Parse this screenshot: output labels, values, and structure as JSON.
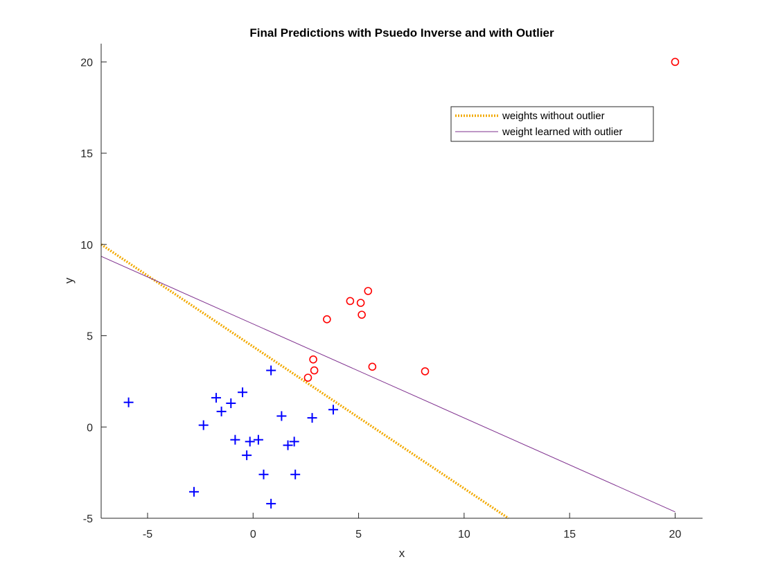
{
  "chart_data": {
    "type": "scatter",
    "title": "Final Predictions with Psuedo Inverse and with Outlier",
    "xlabel": "x",
    "ylabel": "y",
    "xlim": [
      -7.2,
      21.3
    ],
    "ylim": [
      -5,
      21
    ],
    "xticks": [
      -5,
      0,
      5,
      10,
      15,
      20
    ],
    "yticks": [
      -5,
      0,
      5,
      10,
      15,
      20
    ],
    "grid": false,
    "legend_position": "top-right",
    "scatter_series": [
      {
        "marker": "plus",
        "color": "#0000ff",
        "points": [
          [
            -5.9,
            1.35
          ],
          [
            -2.8,
            -3.55
          ],
          [
            -2.35,
            0.1
          ],
          [
            -1.75,
            1.6
          ],
          [
            -1.5,
            0.85
          ],
          [
            -1.05,
            1.3
          ],
          [
            -0.85,
            -0.7
          ],
          [
            -0.5,
            1.9
          ],
          [
            -0.3,
            -1.55
          ],
          [
            -0.15,
            -0.8
          ],
          [
            0.25,
            -0.7
          ],
          [
            0.5,
            -2.6
          ],
          [
            0.85,
            3.1
          ],
          [
            0.85,
            -4.2
          ],
          [
            1.35,
            0.6
          ],
          [
            1.65,
            -1.0
          ],
          [
            1.95,
            -0.8
          ],
          [
            2.0,
            -2.6
          ],
          [
            2.8,
            0.5
          ],
          [
            3.8,
            0.95
          ]
        ]
      },
      {
        "marker": "circle",
        "color": "#ff0000",
        "points": [
          [
            2.6,
            2.7
          ],
          [
            2.85,
            3.7
          ],
          [
            2.9,
            3.1
          ],
          [
            3.5,
            5.9
          ],
          [
            4.6,
            6.9
          ],
          [
            5.1,
            6.8
          ],
          [
            5.15,
            6.15
          ],
          [
            5.45,
            7.45
          ],
          [
            5.65,
            3.3
          ],
          [
            8.15,
            3.05
          ],
          [
            20,
            20
          ]
        ]
      }
    ],
    "lines": [
      {
        "name": "weights without outlier",
        "color": "#f2a900",
        "style": "dotted",
        "points": [
          [
            -7.2,
            10.0
          ],
          [
            12.1,
            -5.0
          ]
        ]
      },
      {
        "name": "weight learned with outlier",
        "color": "#7e2f8e",
        "style": "solid",
        "points": [
          [
            -7.2,
            9.35
          ],
          [
            20,
            -4.65
          ]
        ]
      }
    ]
  }
}
